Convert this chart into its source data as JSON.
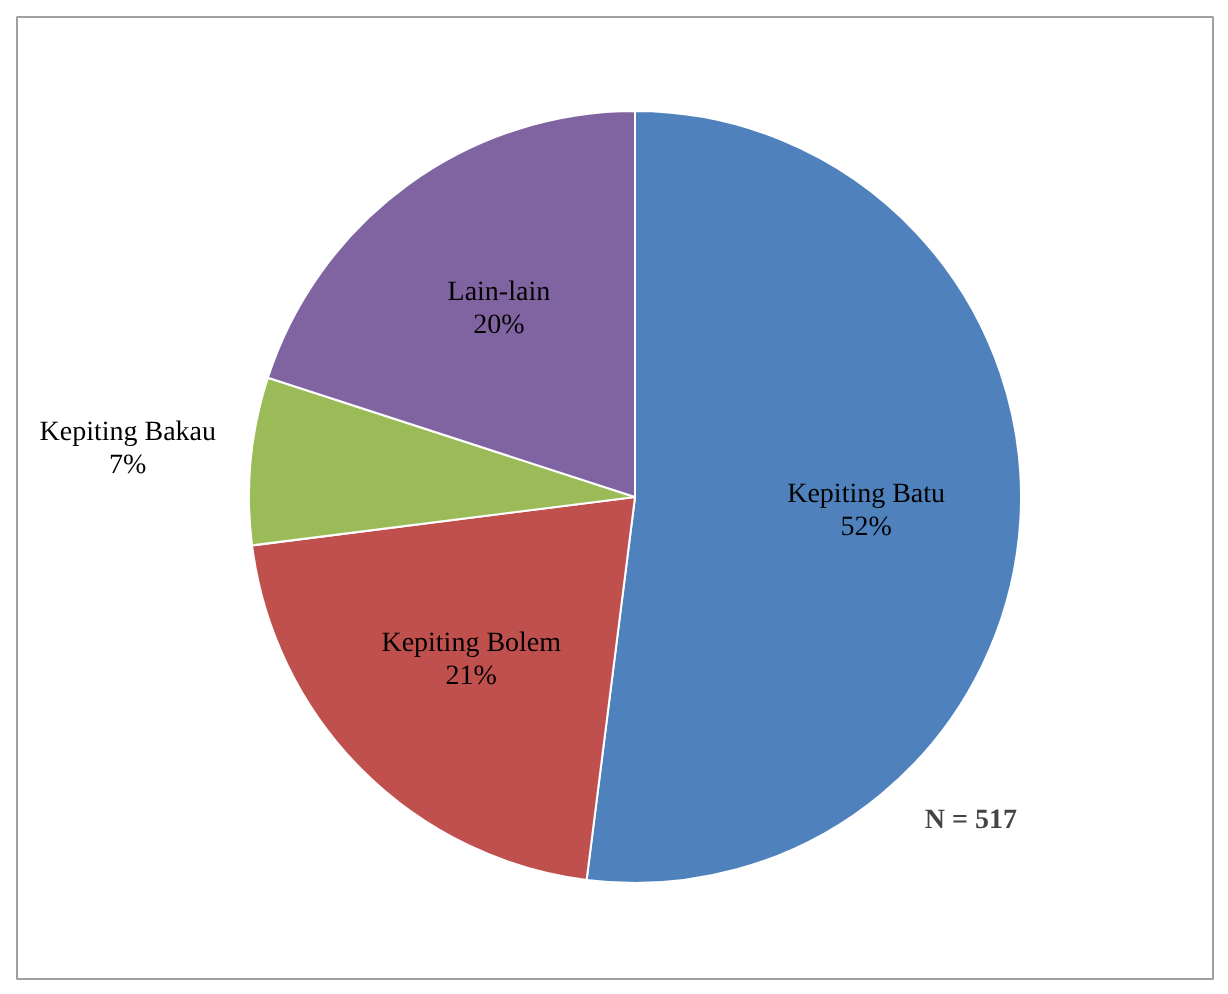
{
  "chart_data": {
    "type": "pie",
    "categories": [
      "Kepiting Batu",
      "Kepiting Bolem",
      "Kepiting Bakau",
      "Lain-lain"
    ],
    "values": [
      52,
      21,
      7,
      20
    ],
    "colors": [
      "#4f81bd",
      "#c0504d",
      "#9bbb59",
      "#8064a2"
    ],
    "value_labels": [
      "52%",
      "21%",
      "7%",
      "20%"
    ],
    "annotations": [
      "N = 517"
    ]
  }
}
